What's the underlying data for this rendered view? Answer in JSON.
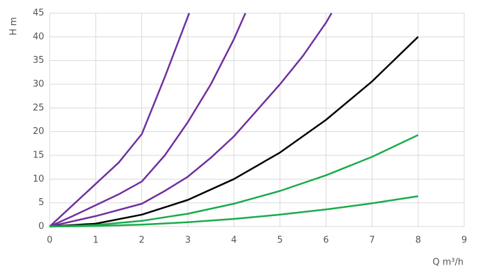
{
  "chart_data": {
    "type": "line",
    "x_label": "Q m³/h",
    "y_label": "H m",
    "xlim": [
      0,
      9
    ],
    "xticks": [
      0,
      1,
      2,
      3,
      4,
      5,
      6,
      7,
      8,
      9
    ],
    "ylim": [
      0,
      45
    ],
    "yticks": [
      0,
      5,
      10,
      15,
      20,
      25,
      30,
      35,
      40,
      45
    ],
    "grid": true,
    "series": [
      {
        "color": "#7030a0",
        "x": [
          0,
          0.5,
          1,
          1.5,
          2,
          2.5,
          3.03
        ],
        "values": [
          0,
          4.5,
          9,
          13.5,
          19.5,
          31.5,
          45
        ]
      },
      {
        "color": "#7030a0",
        "x": [
          0,
          0.5,
          1,
          1.5,
          2,
          2.5,
          3,
          3.5,
          4,
          4.25
        ],
        "values": [
          0,
          2.2,
          4.5,
          6.8,
          9.5,
          15,
          22,
          30,
          39.5,
          45
        ]
      },
      {
        "color": "#7030a0",
        "x": [
          0,
          1,
          2,
          2.5,
          3,
          3.5,
          4,
          4.5,
          5,
          5.5,
          6,
          6.12
        ],
        "values": [
          0,
          2.2,
          4.8,
          7.5,
          10.5,
          14.5,
          19,
          24.5,
          30,
          36,
          43,
          45
        ]
      },
      {
        "color": "#000000",
        "x": [
          0,
          1,
          2,
          3,
          4,
          5,
          6,
          7,
          8
        ],
        "values": [
          0,
          0.6,
          2.5,
          5.6,
          10,
          15.6,
          22.5,
          30.6,
          40
        ]
      },
      {
        "color": "#1aab4a",
        "x": [
          0,
          1,
          2,
          3,
          4,
          5,
          6,
          7,
          8
        ],
        "values": [
          0,
          0.3,
          1.2,
          2.7,
          4.8,
          7.5,
          10.8,
          14.7,
          19.3
        ]
      },
      {
        "color": "#1aab4a",
        "x": [
          0,
          1,
          2,
          3,
          4,
          5,
          6,
          7,
          8
        ],
        "values": [
          0,
          0.1,
          0.4,
          0.9,
          1.6,
          2.5,
          3.6,
          4.9,
          6.4
        ]
      }
    ]
  }
}
